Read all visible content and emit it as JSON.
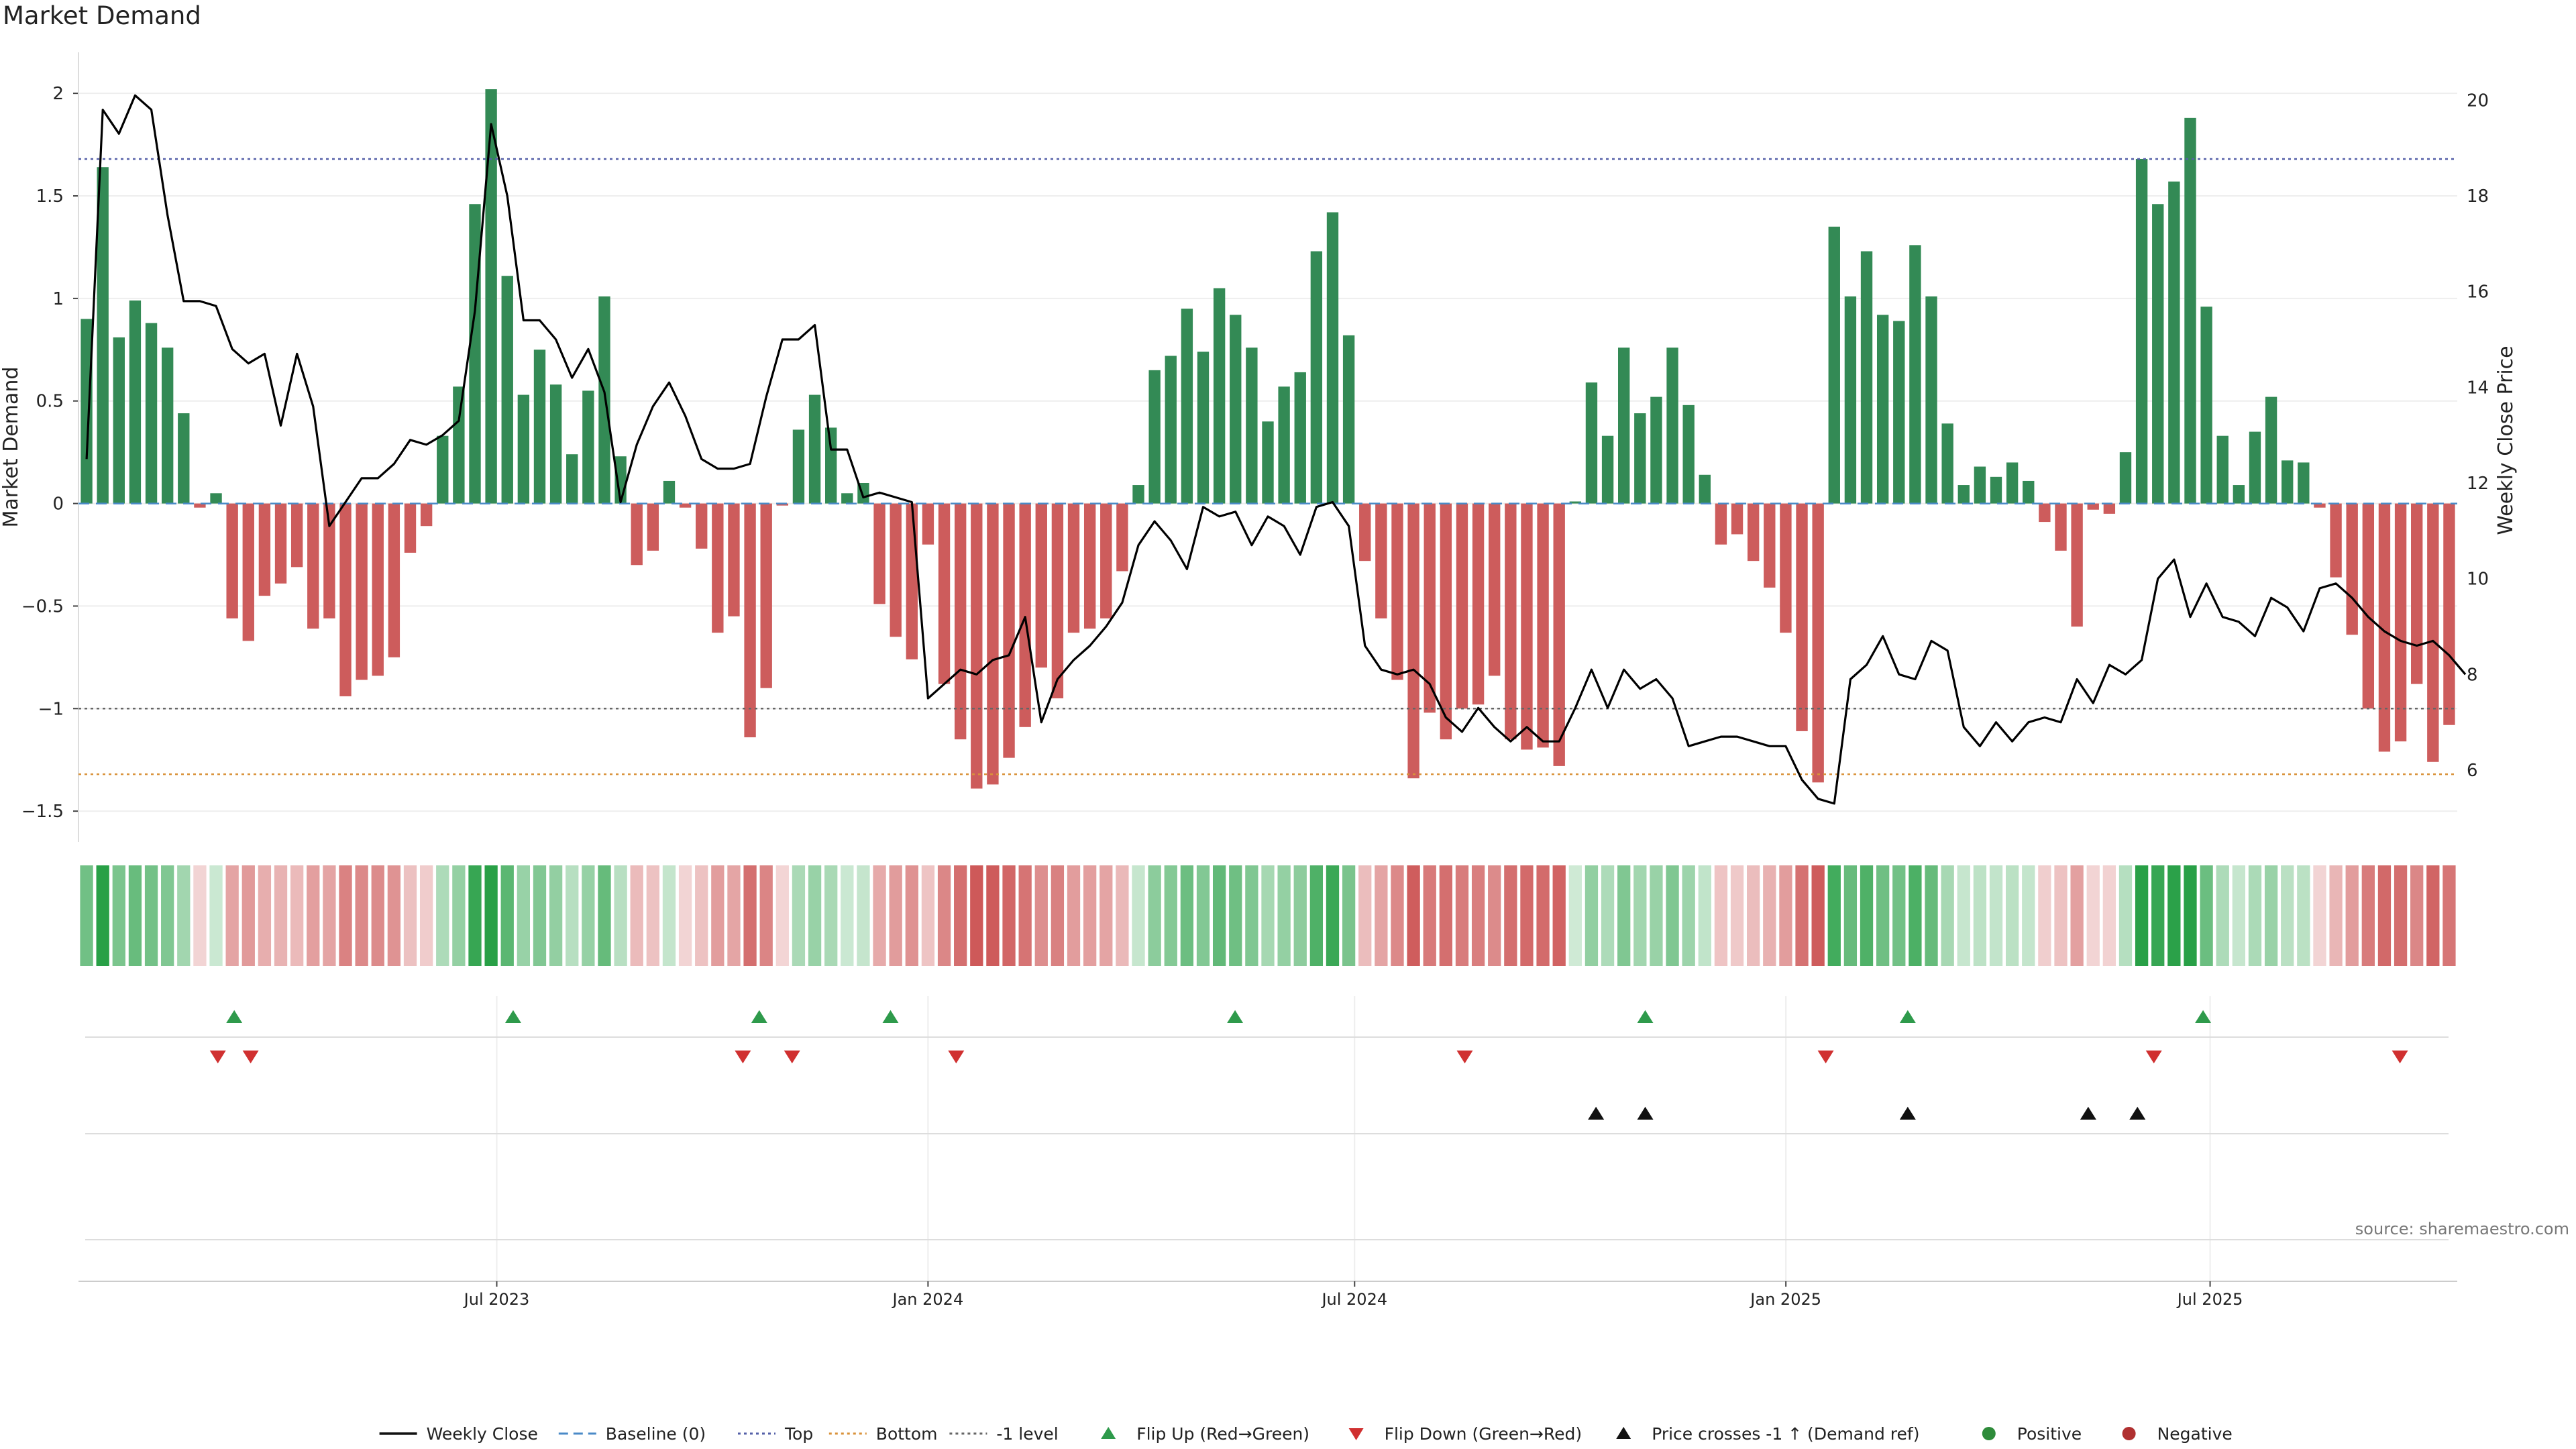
{
  "chart_data": {
    "type": "bar",
    "title": "Market Demand",
    "ylabel_left": "Market Demand",
    "ylabel_right": "Weekly Close Price",
    "source": "source: sharemaestro.com",
    "start_date": "2023-01-07",
    "end_date": "2025-10-11",
    "ylim_left": [
      -1.65,
      2.2
    ],
    "ylim_right": [
      4.5,
      21.0
    ],
    "yticks_left": [
      {
        "value": 2,
        "label": "2"
      },
      {
        "value": 1.5,
        "label": "1.5"
      },
      {
        "value": 1,
        "label": "1"
      },
      {
        "value": 0.5,
        "label": "0.5"
      },
      {
        "value": 0,
        "label": "0"
      },
      {
        "value": -0.5,
        "label": "−0.5"
      },
      {
        "value": -1,
        "label": "−1"
      },
      {
        "value": -1.5,
        "label": "−1.5"
      }
    ],
    "yticks_right": [
      {
        "value": 20,
        "label": "20"
      },
      {
        "value": 18,
        "label": "18"
      },
      {
        "value": 16,
        "label": "16"
      },
      {
        "value": 14,
        "label": "14"
      },
      {
        "value": 12,
        "label": "12"
      },
      {
        "value": 10,
        "label": "10"
      },
      {
        "value": 8,
        "label": "8"
      },
      {
        "value": 6,
        "label": "6"
      }
    ],
    "xticks": [
      {
        "date": "2023-07-01",
        "label": "Jul 2023"
      },
      {
        "date": "2024-01-01",
        "label": "Jan 2024"
      },
      {
        "date": "2024-07-01",
        "label": "Jul 2024"
      },
      {
        "date": "2025-01-01",
        "label": "Jan 2025"
      },
      {
        "date": "2025-07-01",
        "label": "Jul 2025"
      }
    ],
    "levels": {
      "top": 1.68,
      "bottom": -1.32,
      "minus_one": -1,
      "baseline": 0
    },
    "demand": [
      0.9,
      1.64,
      0.81,
      0.99,
      0.88,
      0.76,
      0.44,
      -0.02,
      0.05,
      -0.56,
      -0.67,
      -0.45,
      -0.39,
      -0.31,
      -0.61,
      -0.56,
      -0.94,
      -0.86,
      -0.84,
      -0.75,
      -0.24,
      -0.11,
      0.33,
      0.57,
      1.46,
      2.02,
      1.11,
      0.53,
      0.75,
      0.58,
      0.24,
      0.55,
      1.01,
      0.23,
      -0.3,
      -0.23,
      0.11,
      -0.02,
      -0.22,
      -0.63,
      -0.55,
      -1.14,
      -0.9,
      -0.01,
      0.36,
      0.53,
      0.37,
      0.05,
      0.1,
      -0.49,
      -0.65,
      -0.76,
      -0.2,
      -0.88,
      -1.15,
      -1.39,
      -1.37,
      -1.24,
      -1.09,
      -0.8,
      -0.95,
      -0.63,
      -0.61,
      -0.56,
      -0.33,
      0.09,
      0.65,
      0.72,
      0.95,
      0.74,
      1.05,
      0.92,
      0.76,
      0.4,
      0.57,
      0.64,
      1.23,
      1.42,
      0.82,
      -0.28,
      -0.56,
      -0.86,
      -1.34,
      -1.02,
      -1.15,
      -1.0,
      -0.98,
      -0.84,
      -1.15,
      -1.2,
      -1.19,
      -1.28,
      0.01,
      0.59,
      0.33,
      0.76,
      0.44,
      0.52,
      0.76,
      0.48,
      0.14,
      -0.2,
      -0.15,
      -0.28,
      -0.41,
      -0.63,
      -1.11,
      -1.36,
      1.35,
      1.01,
      1.23,
      0.92,
      0.89,
      1.26,
      1.01,
      0.39,
      0.09,
      0.18,
      0.13,
      0.2,
      0.11,
      -0.09,
      -0.23,
      -0.6,
      -0.03,
      -0.05,
      0.25,
      1.68,
      1.46,
      1.57,
      1.88,
      0.96,
      0.33,
      0.09,
      0.35,
      0.52,
      0.21,
      0.2,
      -0.02,
      -0.36,
      -0.64,
      -1.0,
      -1.21,
      -1.16,
      -0.88,
      -1.26,
      -1.08
    ],
    "price": [
      12.5,
      19.8,
      19.3,
      20.1,
      19.8,
      17.6,
      15.8,
      15.8,
      15.7,
      14.8,
      14.5,
      14.7,
      13.2,
      14.7,
      13.6,
      11.1,
      11.6,
      12.1,
      12.1,
      12.4,
      12.9,
      12.8,
      13.0,
      13.3,
      15.6,
      19.5,
      18.0,
      15.4,
      15.4,
      15.0,
      14.2,
      14.8,
      13.9,
      11.6,
      12.8,
      13.6,
      14.1,
      13.4,
      12.5,
      12.3,
      12.3,
      12.4,
      13.8,
      15.0,
      15.0,
      15.3,
      12.7,
      12.7,
      11.7,
      11.8,
      11.7,
      11.6,
      7.5,
      7.8,
      8.1,
      8.0,
      8.3,
      8.4,
      9.2,
      7.0,
      7.9,
      8.3,
      8.6,
      9.0,
      9.5,
      10.7,
      11.2,
      10.8,
      10.2,
      11.5,
      11.3,
      11.4,
      10.7,
      11.3,
      11.1,
      10.5,
      11.5,
      11.6,
      11.1,
      8.6,
      8.1,
      8.0,
      8.1,
      7.8,
      7.1,
      6.8,
      7.3,
      6.9,
      6.6,
      6.9,
      6.6,
      6.6,
      7.3,
      8.1,
      7.3,
      8.1,
      7.7,
      7.9,
      7.5,
      6.5,
      6.6,
      6.7,
      6.7,
      6.6,
      6.5,
      6.5,
      5.8,
      5.4,
      5.3,
      7.9,
      8.2,
      8.8,
      8.0,
      7.9,
      8.7,
      8.5,
      6.9,
      6.5,
      7.0,
      6.6,
      7.0,
      7.1,
      7.0,
      7.9,
      7.4,
      8.2,
      8.0,
      8.3,
      10.0,
      10.4,
      9.2,
      9.9,
      9.2,
      9.1,
      8.8,
      9.6,
      9.4,
      8.9,
      9.8,
      9.9,
      9.6,
      9.2,
      8.9,
      8.7,
      8.6,
      8.7,
      8.4,
      8.0
    ],
    "flip_up_dates": [
      "2023-03-11",
      "2023-07-08",
      "2023-10-21",
      "2023-12-16",
      "2024-05-11",
      "2024-11-02",
      "2025-02-22",
      "2025-06-28"
    ],
    "flip_down_dates": [
      "2023-03-04",
      "2023-03-18",
      "2023-10-14",
      "2023-11-04",
      "2024-01-13",
      "2024-08-17",
      "2025-01-18",
      "2025-06-07",
      "2025-09-20"
    ],
    "price_cross_dates": [
      "2024-10-12",
      "2024-11-02",
      "2025-02-22",
      "2025-05-10",
      "2025-05-31"
    ],
    "legend": [
      {
        "label": "Weekly Close",
        "kind": "line",
        "color": "#111111"
      },
      {
        "label": "Baseline (0)",
        "kind": "dash",
        "color": "#4a8ac7"
      },
      {
        "label": "Top",
        "kind": "dot",
        "color": "#5560a8"
      },
      {
        "label": "Bottom",
        "kind": "dot",
        "color": "#d9923a"
      },
      {
        "label": "-1 level",
        "kind": "dot",
        "color": "#666666"
      },
      {
        "label": "Flip Up (Red→Green)",
        "kind": "tri-up",
        "color": "#2e9a4b"
      },
      {
        "label": "Flip Down (Green→Red)",
        "kind": "tri-down",
        "color": "#d03030"
      },
      {
        "label": "Price crosses -1 ↑ (Demand ref)",
        "kind": "tri-up",
        "color": "#111111"
      },
      {
        "label": "Positive",
        "kind": "circle",
        "color": "#2e8b3a"
      },
      {
        "label": "Negative",
        "kind": "circle",
        "color": "#b03030"
      }
    ],
    "colors": {
      "positive": "#338a55",
      "negative": "#cd5c5c",
      "price": "#000000"
    }
  }
}
